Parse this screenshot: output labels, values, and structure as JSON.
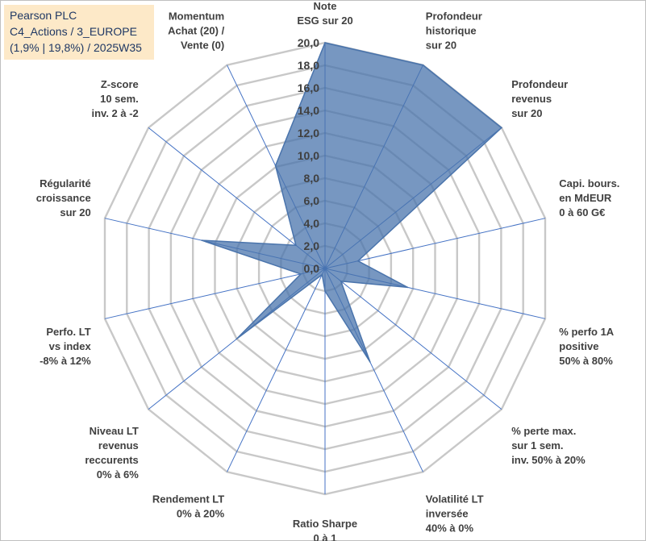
{
  "info": {
    "line1": "Pearson PLC",
    "line2": "C4_Actions / 3_EUROPE",
    "line3": "(1,9% | 19,8%) / 2025W35"
  },
  "chart_data": {
    "type": "radar",
    "rmin": 0,
    "rmax": 20,
    "tick_step": 2,
    "tick_labels": [
      "0,0",
      "2,0",
      "4,0",
      "6,0",
      "8,0",
      "10,0",
      "12,0",
      "14,0",
      "16,0",
      "18,0",
      "20,0"
    ],
    "grid": true,
    "axes": [
      {
        "label": [
          "Note",
          "ESG sur 20"
        ],
        "value": 20.0
      },
      {
        "label": [
          "Profondeur",
          "historique",
          "sur 20"
        ],
        "value": 20.0
      },
      {
        "label": [
          "Profondeur",
          "revenus",
          "sur 20"
        ],
        "value": 20.0
      },
      {
        "label": [
          "Capi. bours.",
          "en MdEUR",
          "0 à 60 G€"
        ],
        "value": 3.0
      },
      {
        "label": [
          "% perfo 1A",
          "positive",
          "50% à 80%"
        ],
        "value": 7.5
      },
      {
        "label": [
          "% perte max.",
          "sur 1 sem.",
          "inv. 50% à 20%"
        ],
        "value": 1.8
      },
      {
        "label": [
          "Volatilité LT",
          "inversée",
          "40% à 0%"
        ],
        "value": 9.2
      },
      {
        "label": [
          "Ratio Sharpe",
          "0 à 1"
        ],
        "value": 2.0
      },
      {
        "label": [
          "Rendement LT",
          "0% à 20%"
        ],
        "value": 0.6
      },
      {
        "label": [
          "Niveau LT",
          "revenus",
          "reccurents",
          "0% à 6%"
        ],
        "value": 10.0
      },
      {
        "label": [
          "Perfo. LT",
          "vs index",
          "-8% à 12%"
        ],
        "value": 2.2
      },
      {
        "label": [
          "Régularité",
          "croissance",
          "sur 20"
        ],
        "value": 11.2
      },
      {
        "label": [
          "Z-score",
          "10 sem.",
          "inv. 2 à -2"
        ],
        "value": 3.3
      },
      {
        "label": [
          "Momentum",
          "Achat (20) /",
          "Vente (0)"
        ],
        "value": 10.1
      }
    ],
    "series": [
      {
        "color": "#4a74ac",
        "fill_opacity": 0.75
      }
    ]
  }
}
